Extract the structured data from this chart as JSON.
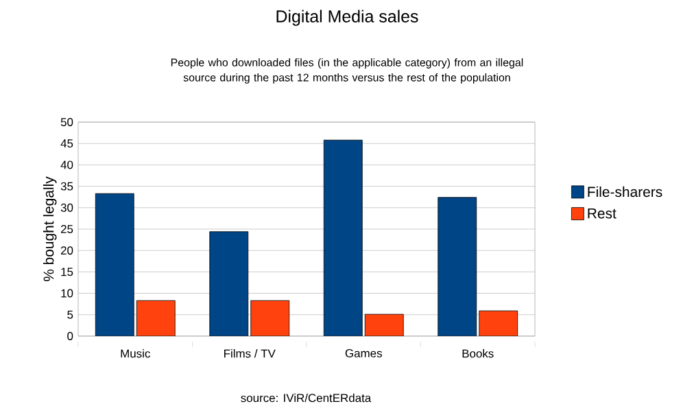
{
  "chart_data": {
    "type": "bar",
    "title": "Digital Media sales",
    "subtitle": "People who downloaded files (in the applicable category) from an illegal source during the past 12 months versus the rest of the population",
    "ylabel": "% bought legally",
    "categories": [
      "Music",
      "Films / TV",
      "Games",
      "Books"
    ],
    "series": [
      {
        "name": "File-sharers",
        "color": "#004586",
        "values": [
          33.3,
          24.4,
          45.8,
          32.4
        ]
      },
      {
        "name": "Rest",
        "color": "#ff420e",
        "values": [
          8.3,
          8.3,
          5.1,
          5.9
        ]
      }
    ],
    "ylim": [
      0,
      50
    ],
    "yticks": [
      0,
      5,
      10,
      15,
      20,
      25,
      30,
      35,
      40,
      45,
      50
    ],
    "grid": "y",
    "legend": "right",
    "annotations": [
      "source: IViR/CentERdata"
    ]
  }
}
